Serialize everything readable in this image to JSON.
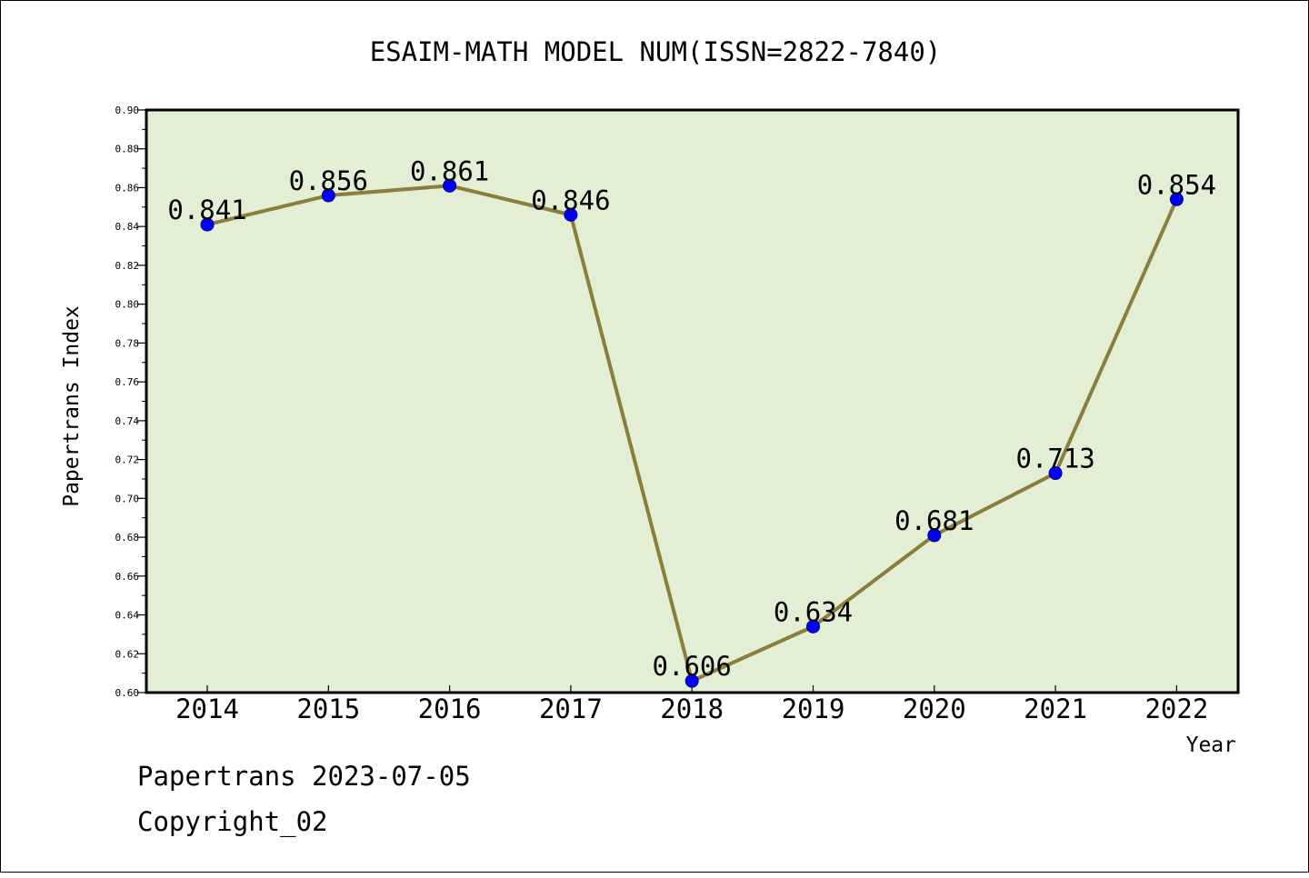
{
  "chart_data": {
    "type": "line",
    "title": "ESAIM-MATH MODEL NUM(ISSN=2822-7840)",
    "xlabel": "Year",
    "ylabel": "Papertrans Index",
    "categories": [
      "2014",
      "2015",
      "2016",
      "2017",
      "2018",
      "2019",
      "2020",
      "2021",
      "2022"
    ],
    "values": [
      0.841,
      0.856,
      0.861,
      0.846,
      0.606,
      0.634,
      0.681,
      0.713,
      0.854
    ],
    "data_labels": [
      "0.841",
      "0.856",
      "0.861",
      "0.846",
      "0.606",
      "0.634",
      "0.681",
      "0.713",
      "0.854"
    ],
    "ylim": [
      0.6,
      0.9
    ],
    "yticks": [
      "0.60",
      "0.62",
      "0.64",
      "0.66",
      "0.68",
      "0.70",
      "0.72",
      "0.74",
      "0.76",
      "0.78",
      "0.80",
      "0.82",
      "0.84",
      "0.86",
      "0.88",
      "0.90"
    ],
    "grid": false,
    "colors": {
      "line": "#8b7d3a",
      "marker": "#0000ff",
      "plot_background": "#e2efd4"
    }
  },
  "footer": {
    "line1": "Papertrans 2023-07-05",
    "line2": "Copyright_02"
  }
}
